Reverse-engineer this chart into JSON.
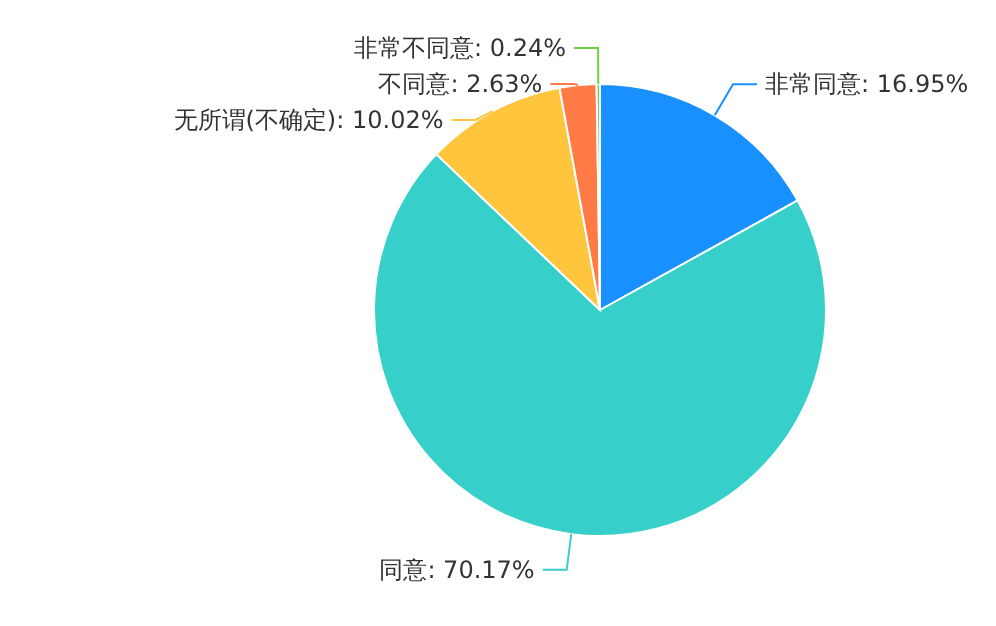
{
  "chart_data": {
    "type": "pie",
    "categories": [
      "非常同意",
      "同意",
      "无所谓(不确定)",
      "不同意",
      "非常不同意"
    ],
    "values": [
      16.95,
      70.17,
      10.02,
      2.63,
      0.24
    ],
    "colors": [
      "#1890ff",
      "#36cfc9",
      "#ffc53d",
      "#ff7a45",
      "#73d13d"
    ],
    "value_labels": [
      ": 16.95%",
      ": 70.17%",
      ": 10.02%",
      ": 2.63%",
      ": 0.24%"
    ],
    "legend": false
  }
}
